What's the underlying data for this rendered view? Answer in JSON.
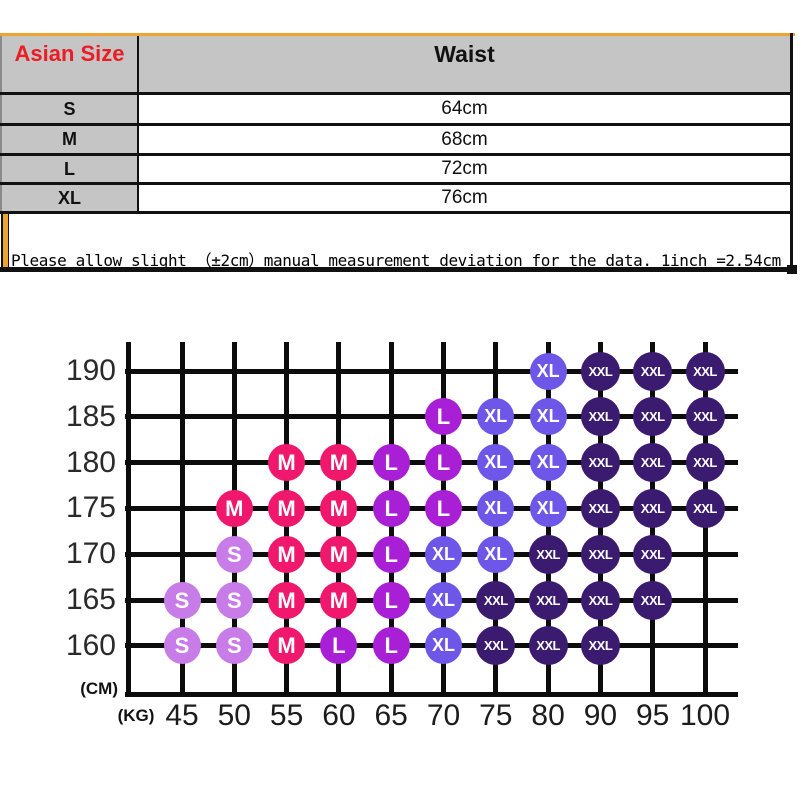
{
  "size_table": {
    "header": {
      "size_col": "Asian Size",
      "value_col": "Waist"
    },
    "rows": [
      {
        "size": "S",
        "value": "64cm"
      },
      {
        "size": "M",
        "value": "68cm"
      },
      {
        "size": "L",
        "value": "72cm"
      },
      {
        "size": "XL",
        "value": "76cm"
      }
    ],
    "note": "Please allow slight （±2cm）manual measurement deviation for the data. 1inch =2.54cm",
    "accent_color": "#eda52f",
    "header_text_color": "#ed1c24",
    "header_bg_color": "#c5c5c5"
  },
  "chart_data": {
    "type": "heatmap",
    "title": "",
    "xlabel": "(KG)",
    "ylabel": "(CM)",
    "x_categories": [
      45,
      50,
      55,
      60,
      65,
      70,
      75,
      80,
      90,
      95,
      100
    ],
    "y_categories": [
      190,
      185,
      180,
      175,
      170,
      165,
      160
    ],
    "grid": true,
    "sizes": [
      "S",
      "M",
      "L",
      "XL",
      "XXL"
    ],
    "size_colors": {
      "S": "#c77ce8",
      "M": "#f0186c",
      "L": "#a81fd6",
      "XL": "#6e56e8",
      "XXL": "#3a1b70"
    },
    "matrix": [
      [
        "",
        "",
        "",
        "",
        "",
        "",
        "",
        "XL",
        "XXL",
        "XXL",
        "XXL"
      ],
      [
        "",
        "",
        "",
        "",
        "",
        "L",
        "XL",
        "XL",
        "XXL",
        "XXL",
        "XXL"
      ],
      [
        "",
        "",
        "M",
        "M",
        "L",
        "L",
        "XL",
        "XL",
        "XXL",
        "XXL",
        "XXL"
      ],
      [
        "",
        "M",
        "M",
        "M",
        "L",
        "L",
        "XL",
        "XL",
        "XXL",
        "XXL",
        "XXL"
      ],
      [
        "",
        "S",
        "M",
        "M",
        "L",
        "XL",
        "XL",
        "XXL",
        "XXL",
        "XXL",
        ""
      ],
      [
        "S",
        "S",
        "M",
        "M",
        "L",
        "XL",
        "XXL",
        "XXL",
        "XXL",
        "XXL",
        ""
      ],
      [
        "S",
        "S",
        "M",
        "L",
        "L",
        "XL",
        "XXL",
        "XXL",
        "XXL",
        "",
        ""
      ]
    ]
  }
}
